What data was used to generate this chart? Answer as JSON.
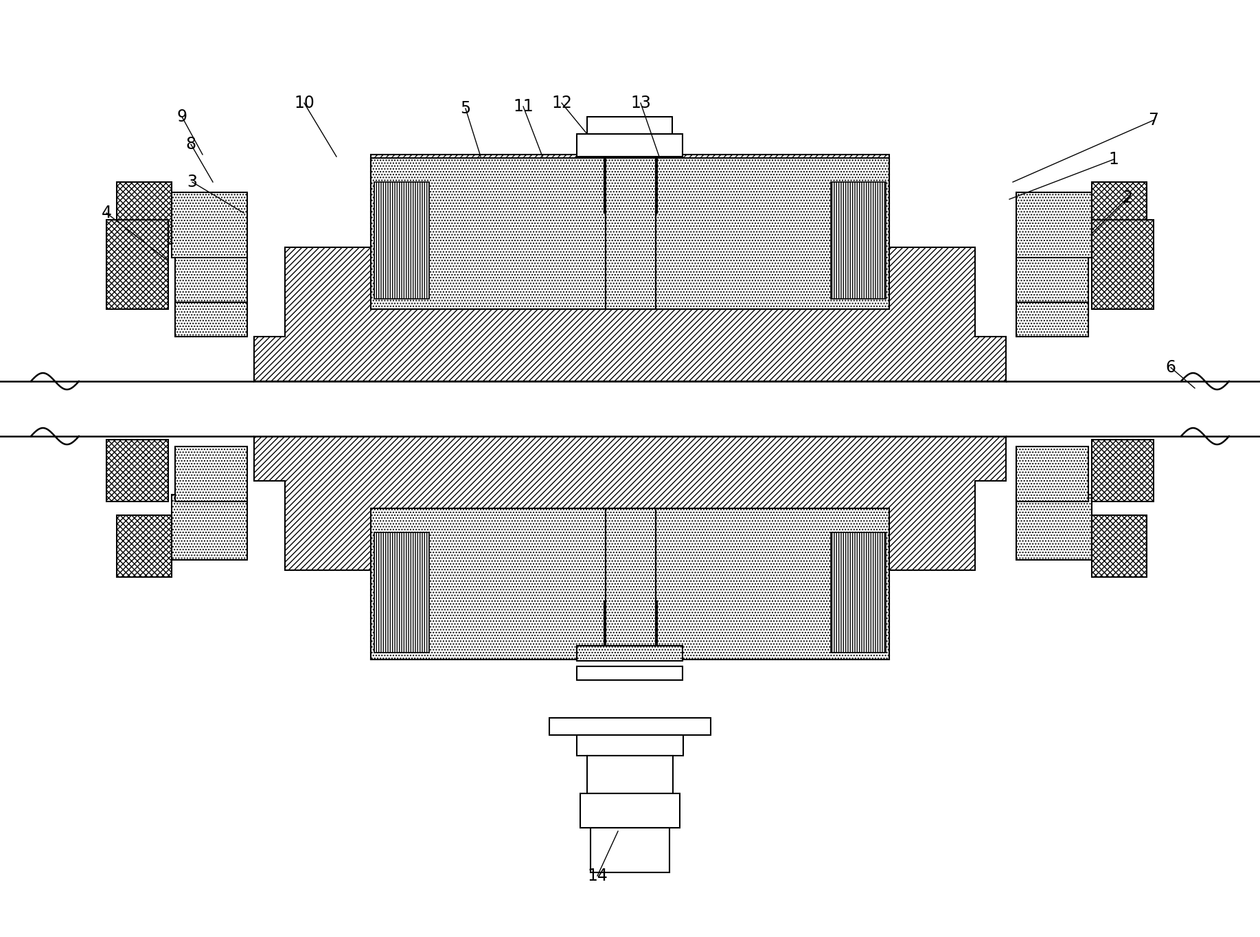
{
  "bg_color": "#ffffff",
  "lw": 1.5,
  "fig_width": 18.35,
  "fig_height": 13.64
}
